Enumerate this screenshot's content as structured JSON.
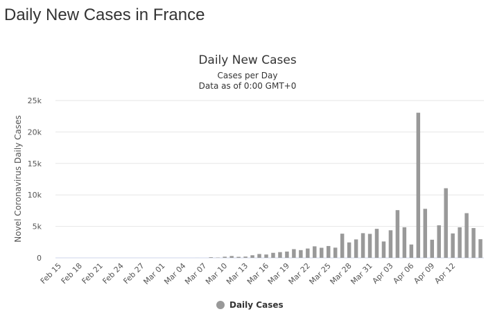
{
  "page": {
    "heading": "Daily New Cases in France"
  },
  "chart_data": {
    "type": "bar",
    "title": "Daily New Cases",
    "subtitle_lines": [
      "Cases per Day",
      "Data as of 0:00 GMT+0"
    ],
    "xlabel": "",
    "ylabel": "Novel Coronavirus Daily Cases",
    "ylim": [
      0,
      25000
    ],
    "yticks": [
      0,
      5000,
      10000,
      15000,
      20000,
      25000
    ],
    "ytick_labels": [
      "0",
      "5k",
      "10k",
      "15k",
      "20k",
      "25k"
    ],
    "grid": true,
    "legend_position": "bottom-center",
    "series": [
      {
        "name": "Daily Cases",
        "color": "#999999",
        "values": [
          0,
          0,
          0,
          0,
          0,
          0,
          0,
          0,
          0,
          0,
          0,
          0,
          0,
          0,
          0,
          0,
          0,
          0,
          0,
          0,
          5,
          0,
          100,
          50,
          180,
          290,
          160,
          200,
          410,
          610,
          530,
          800,
          910,
          1000,
          1380,
          1230,
          1480,
          1830,
          1600,
          1880,
          1620,
          3840,
          2450,
          2930,
          3920,
          3810,
          4610,
          2600,
          4380,
          7580,
          4860,
          2120,
          23060,
          7790,
          2880,
          5170,
          11060,
          3880,
          4850,
          7100,
          4730,
          2960
        ]
      }
    ],
    "x_tick_labels": [
      "Feb 15",
      "Feb 18",
      "Feb 21",
      "Feb 24",
      "Feb 27",
      "Mar 01",
      "Mar 04",
      "Mar 07",
      "Mar 10",
      "Mar 13",
      "Mar 16",
      "Mar 19",
      "Mar 22",
      "Mar 25",
      "Mar 28",
      "Mar 31",
      "Apr 03",
      "Apr 06",
      "Apr 09",
      "Apr 12"
    ]
  }
}
